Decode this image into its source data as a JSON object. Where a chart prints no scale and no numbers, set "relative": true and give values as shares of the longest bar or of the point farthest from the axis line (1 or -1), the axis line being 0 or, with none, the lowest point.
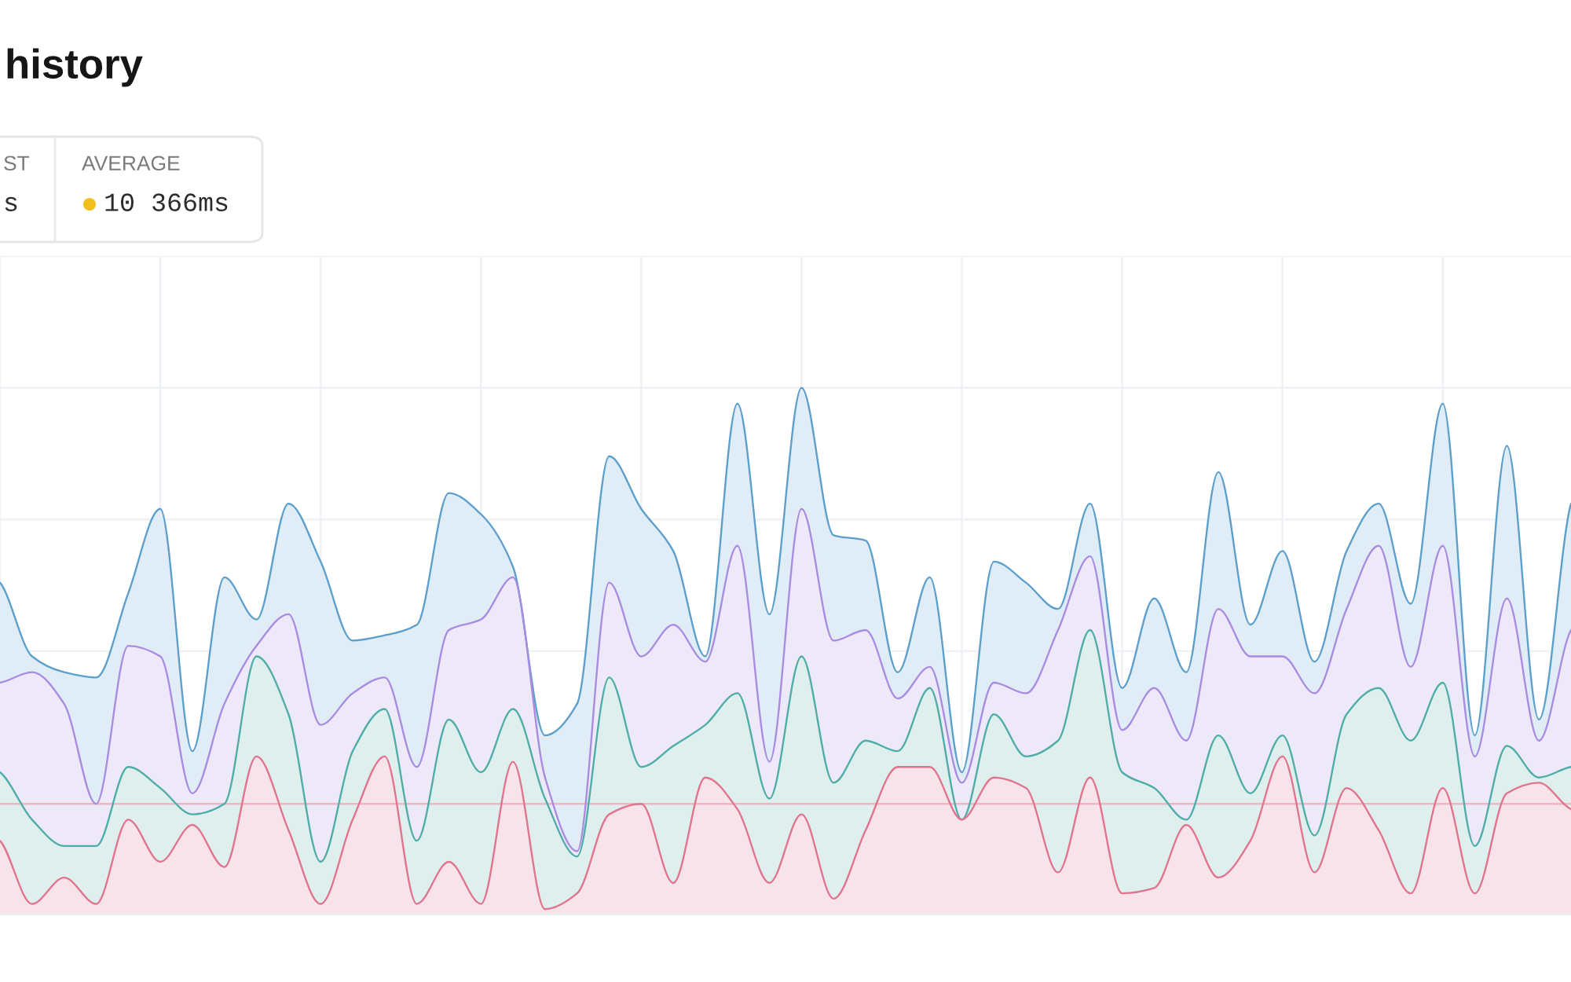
{
  "chart_data": {
    "type": "area",
    "title": "history",
    "annotations": [
      "ST",
      "s",
      "AVERAGE",
      "10 366ms"
    ],
    "relative": true,
    "categories": [
      null,
      null,
      null,
      null,
      null,
      null,
      null,
      null,
      null,
      null,
      null,
      null,
      null,
      null,
      null,
      null,
      null,
      null,
      null,
      null,
      null,
      null,
      null,
      null,
      null,
      null,
      null,
      null,
      null,
      null,
      null,
      null,
      null,
      null,
      null,
      null,
      null,
      null,
      null,
      null,
      null,
      null,
      null,
      null,
      null,
      null,
      null,
      null,
      null,
      null
    ],
    "series": [
      {
        "color": "#5c9fcb",
        "values": [
          0.63,
          0.49,
          0.46,
          0.45,
          0.61,
          0.77,
          0.31,
          0.64,
          0.56,
          0.78,
          0.67,
          0.52,
          0.53,
          0.55,
          0.8,
          0.76,
          0.66,
          0.34,
          0.4,
          0.87,
          0.77,
          0.69,
          0.49,
          0.97,
          0.57,
          1.0,
          0.72,
          0.71,
          0.46,
          0.64,
          0.27,
          0.67,
          0.63,
          0.58,
          0.78,
          0.43,
          0.6,
          0.46,
          0.84,
          0.55,
          0.69,
          0.48,
          0.69,
          0.78,
          0.59,
          0.97,
          0.34,
          0.89,
          0.37,
          0.78
        ]
      },
      {
        "color": "#a98be0",
        "values": [
          0.44,
          0.46,
          0.4,
          0.21,
          0.51,
          0.49,
          0.23,
          0.4,
          0.51,
          0.57,
          0.36,
          0.42,
          0.45,
          0.28,
          0.54,
          0.56,
          0.64,
          0.26,
          0.12,
          0.63,
          0.49,
          0.55,
          0.48,
          0.7,
          0.29,
          0.77,
          0.52,
          0.54,
          0.41,
          0.47,
          0.25,
          0.44,
          0.42,
          0.54,
          0.68,
          0.35,
          0.43,
          0.33,
          0.58,
          0.49,
          0.49,
          0.42,
          0.58,
          0.7,
          0.47,
          0.7,
          0.3,
          0.6,
          0.33,
          0.54
        ]
      },
      {
        "color": "#4fada7",
        "values": [
          0.27,
          0.18,
          0.13,
          0.13,
          0.28,
          0.24,
          0.19,
          0.21,
          0.49,
          0.38,
          0.1,
          0.31,
          0.39,
          0.14,
          0.37,
          0.27,
          0.39,
          0.22,
          0.11,
          0.45,
          0.28,
          0.32,
          0.36,
          0.42,
          0.22,
          0.49,
          0.25,
          0.33,
          0.31,
          0.43,
          0.18,
          0.38,
          0.3,
          0.33,
          0.54,
          0.27,
          0.24,
          0.18,
          0.34,
          0.23,
          0.34,
          0.15,
          0.38,
          0.43,
          0.33,
          0.44,
          0.13,
          0.32,
          0.26,
          0.28
        ]
      },
      {
        "color": "#e2738f",
        "values": [
          0.14,
          0.02,
          0.07,
          0.02,
          0.18,
          0.1,
          0.17,
          0.09,
          0.3,
          0.16,
          0.02,
          0.18,
          0.3,
          0.02,
          0.1,
          0.02,
          0.29,
          0.01,
          0.04,
          0.19,
          0.21,
          0.06,
          0.26,
          0.2,
          0.06,
          0.19,
          0.03,
          0.16,
          0.28,
          0.28,
          0.18,
          0.26,
          0.24,
          0.08,
          0.26,
          0.04,
          0.05,
          0.17,
          0.07,
          0.14,
          0.3,
          0.08,
          0.24,
          0.16,
          0.04,
          0.24,
          0.04,
          0.23,
          0.25,
          0.2
        ]
      }
    ],
    "ref_lines": [
      {
        "axis": "y",
        "value": 0.21,
        "color": "#f2b4c2"
      }
    ],
    "grid": true,
    "tick_labels": false
  }
}
